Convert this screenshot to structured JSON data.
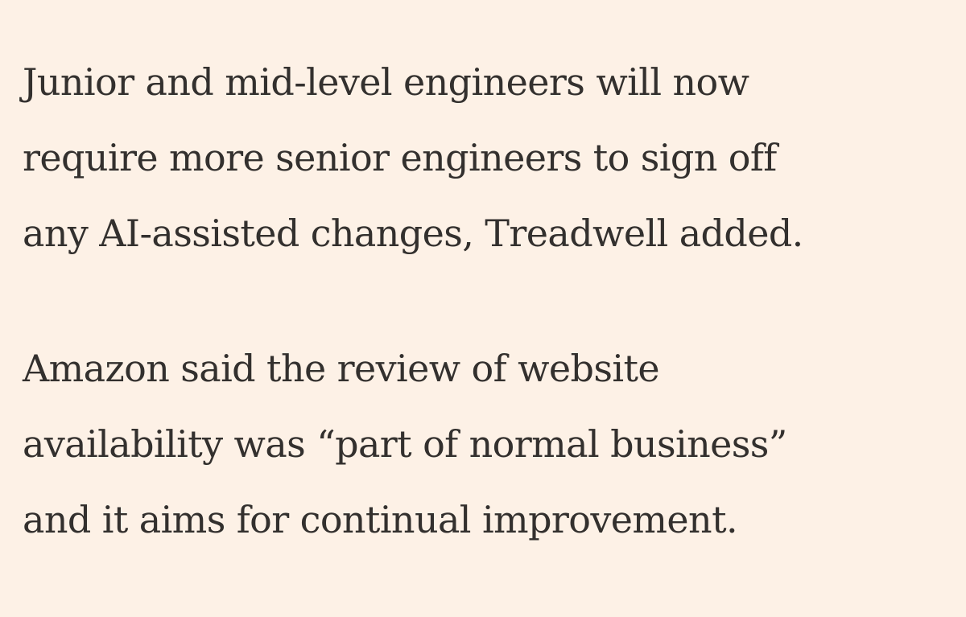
{
  "article": {
    "paragraphs": [
      {
        "lines": [
          "Junior and mid-level engineers will now",
          "require more senior engineers to sign off",
          "any AI-assisted changes, Treadwell added."
        ]
      },
      {
        "lines": [
          "Amazon said the review of website",
          "availability was “part of normal business”",
          "and it aims for continual improvement."
        ]
      }
    ]
  },
  "colors": {
    "background": "#fdf1e6",
    "text": "#33302e"
  }
}
